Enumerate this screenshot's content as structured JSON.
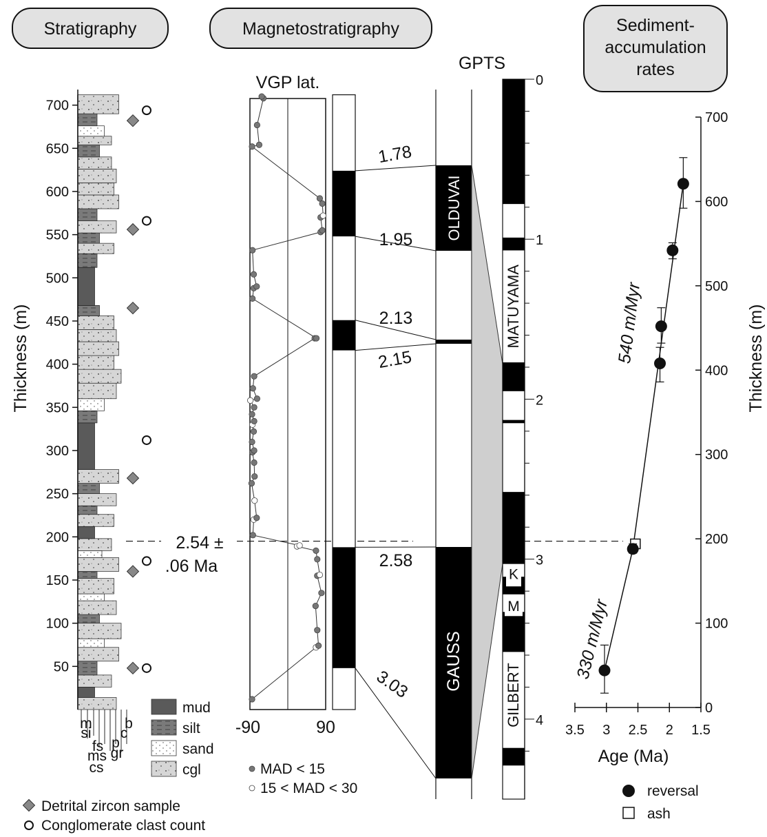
{
  "headers": {
    "stratigraphy": "Stratigraphy",
    "magnetostratigraphy": "Magnetostratigraphy",
    "sar_line1": "Sediment-",
    "sar_line2": "accumulation",
    "sar_line3": "rates"
  },
  "thickness_axis": {
    "label": "Thickness (m)",
    "ticks": [
      50,
      100,
      150,
      200,
      250,
      300,
      350,
      400,
      450,
      500,
      550,
      600,
      650,
      700
    ]
  },
  "lithology": {
    "legend": [
      {
        "key": "mud",
        "label": "mud",
        "color": "#555555"
      },
      {
        "key": "silt",
        "label": "silt",
        "color": "#777777"
      },
      {
        "key": "sand",
        "label": "sand",
        "color": "#ffffff"
      },
      {
        "key": "cgl",
        "label": "cgl",
        "color": "#d3d3d3"
      }
    ],
    "grain_labels": [
      "m",
      "si",
      "fs",
      "ms",
      "cs",
      "p",
      "gr",
      "c",
      "b"
    ],
    "units": [
      {
        "from": 0,
        "to": 14,
        "type": "cgl",
        "g": 0.8
      },
      {
        "from": 14,
        "to": 26,
        "type": "mud",
        "g": 0.35
      },
      {
        "from": 26,
        "to": 40,
        "type": "cgl",
        "g": 0.7
      },
      {
        "from": 40,
        "to": 56,
        "type": "silt",
        "g": 0.4
      },
      {
        "from": 56,
        "to": 72,
        "type": "cgl",
        "g": 0.85
      },
      {
        "from": 72,
        "to": 82,
        "type": "sand",
        "g": 0.55
      },
      {
        "from": 82,
        "to": 100,
        "type": "cgl",
        "g": 0.9
      },
      {
        "from": 100,
        "to": 110,
        "type": "silt",
        "g": 0.45
      },
      {
        "from": 110,
        "to": 126,
        "type": "cgl",
        "g": 0.8
      },
      {
        "from": 126,
        "to": 134,
        "type": "sand",
        "g": 0.55
      },
      {
        "from": 134,
        "to": 152,
        "type": "cgl",
        "g": 0.75
      },
      {
        "from": 152,
        "to": 160,
        "type": "silt",
        "g": 0.4
      },
      {
        "from": 160,
        "to": 176,
        "type": "cgl",
        "g": 0.85
      },
      {
        "from": 176,
        "to": 184,
        "type": "sand",
        "g": 0.5
      },
      {
        "from": 184,
        "to": 198,
        "type": "cgl",
        "g": 0.7
      },
      {
        "from": 198,
        "to": 212,
        "type": "mud",
        "g": 0.35
      },
      {
        "from": 212,
        "to": 226,
        "type": "cgl",
        "g": 0.75
      },
      {
        "from": 226,
        "to": 236,
        "type": "silt",
        "g": 0.4
      },
      {
        "from": 236,
        "to": 250,
        "type": "cgl",
        "g": 0.8
      },
      {
        "from": 250,
        "to": 262,
        "type": "silt",
        "g": 0.45
      },
      {
        "from": 262,
        "to": 278,
        "type": "cgl",
        "g": 0.85
      },
      {
        "from": 278,
        "to": 332,
        "type": "mud",
        "g": 0.35
      },
      {
        "from": 332,
        "to": 346,
        "type": "silt",
        "g": 0.4
      },
      {
        "from": 346,
        "to": 360,
        "type": "sand",
        "g": 0.55
      },
      {
        "from": 360,
        "to": 378,
        "type": "cgl",
        "g": 0.8
      },
      {
        "from": 378,
        "to": 394,
        "type": "cgl",
        "g": 0.9
      },
      {
        "from": 394,
        "to": 410,
        "type": "cgl",
        "g": 0.75
      },
      {
        "from": 410,
        "to": 426,
        "type": "cgl",
        "g": 0.85
      },
      {
        "from": 426,
        "to": 440,
        "type": "cgl",
        "g": 0.8
      },
      {
        "from": 440,
        "to": 456,
        "type": "cgl",
        "g": 0.75
      },
      {
        "from": 456,
        "to": 468,
        "type": "silt",
        "g": 0.45
      },
      {
        "from": 468,
        "to": 512,
        "type": "mud",
        "g": 0.35
      },
      {
        "from": 512,
        "to": 528,
        "type": "silt",
        "g": 0.4
      },
      {
        "from": 528,
        "to": 540,
        "type": "cgl",
        "g": 0.75
      },
      {
        "from": 540,
        "to": 552,
        "type": "silt",
        "g": 0.45
      },
      {
        "from": 552,
        "to": 566,
        "type": "cgl",
        "g": 0.8
      },
      {
        "from": 566,
        "to": 580,
        "type": "silt",
        "g": 0.4
      },
      {
        "from": 580,
        "to": 596,
        "type": "cgl",
        "g": 0.85
      },
      {
        "from": 596,
        "to": 610,
        "type": "cgl",
        "g": 0.75
      },
      {
        "from": 610,
        "to": 626,
        "type": "cgl",
        "g": 0.8
      },
      {
        "from": 626,
        "to": 640,
        "type": "cgl",
        "g": 0.7
      },
      {
        "from": 640,
        "to": 654,
        "type": "silt",
        "g": 0.45
      },
      {
        "from": 654,
        "to": 664,
        "type": "cgl",
        "g": 0.7
      },
      {
        "from": 664,
        "to": 676,
        "type": "sand",
        "g": 0.55
      },
      {
        "from": 676,
        "to": 690,
        "type": "silt",
        "g": 0.4
      },
      {
        "from": 690,
        "to": 712,
        "type": "cgl",
        "g": 0.85
      }
    ]
  },
  "samples": {
    "zircon": [
      48,
      160,
      268,
      465,
      556,
      682
    ],
    "clast": [
      48,
      172,
      312,
      566,
      694
    ],
    "legend_zircon": "Detrital zircon sample",
    "legend_clast": "Conglomerate clast count"
  },
  "ash_marker": {
    "thickness": 195,
    "label_line1": "2.54 ±",
    "label_line2": ".06 Ma"
  },
  "vgp": {
    "title": "VGP lat.",
    "xmin": -90,
    "xmax": 90,
    "tick_labels": [
      "-90",
      "90"
    ],
    "legend_low": "MAD < 15",
    "legend_mid": "15 < MAD < 30",
    "points": [
      {
        "h": 12,
        "lat": -85,
        "mad": "low"
      },
      {
        "h": 72,
        "lat": 67,
        "mad": "high"
      },
      {
        "h": 74,
        "lat": 73,
        "mad": "low"
      },
      {
        "h": 92,
        "lat": 70,
        "mad": "low"
      },
      {
        "h": 120,
        "lat": 66,
        "mad": "low"
      },
      {
        "h": 135,
        "lat": 80,
        "mad": "low"
      },
      {
        "h": 155,
        "lat": 70,
        "mad": "low"
      },
      {
        "h": 156,
        "lat": 76,
        "mad": "high"
      },
      {
        "h": 174,
        "lat": 70,
        "mad": "low"
      },
      {
        "h": 184,
        "lat": 67,
        "mad": "low"
      },
      {
        "h": 189,
        "lat": 22,
        "mad": "high"
      },
      {
        "h": 190,
        "lat": 28,
        "mad": "high"
      },
      {
        "h": 202,
        "lat": -83,
        "mad": "low"
      },
      {
        "h": 220,
        "lat": -81,
        "mad": "high"
      },
      {
        "h": 222,
        "lat": -74,
        "mad": "low"
      },
      {
        "h": 242,
        "lat": -79,
        "mad": "high"
      },
      {
        "h": 262,
        "lat": -86,
        "mad": "low"
      },
      {
        "h": 270,
        "lat": -79,
        "mad": "low"
      },
      {
        "h": 286,
        "lat": -80,
        "mad": "low"
      },
      {
        "h": 298,
        "lat": -84,
        "mad": "low"
      },
      {
        "h": 300,
        "lat": -80,
        "mad": "low"
      },
      {
        "h": 310,
        "lat": -85,
        "mad": "low"
      },
      {
        "h": 322,
        "lat": -81,
        "mad": "low"
      },
      {
        "h": 330,
        "lat": -84,
        "mad": "high"
      },
      {
        "h": 334,
        "lat": -80,
        "mad": "low"
      },
      {
        "h": 342,
        "lat": -85,
        "mad": "low"
      },
      {
        "h": 350,
        "lat": -80,
        "mad": "low"
      },
      {
        "h": 358,
        "lat": -89,
        "mad": "high"
      },
      {
        "h": 360,
        "lat": -73,
        "mad": "low"
      },
      {
        "h": 372,
        "lat": -83,
        "mad": "low"
      },
      {
        "h": 386,
        "lat": -80,
        "mad": "low"
      },
      {
        "h": 430,
        "lat": 64,
        "mad": "low"
      },
      {
        "h": 430,
        "lat": 68,
        "mad": "low"
      },
      {
        "h": 476,
        "lat": -84,
        "mad": "low"
      },
      {
        "h": 488,
        "lat": -81,
        "mad": "low"
      },
      {
        "h": 490,
        "lat": -74,
        "mad": "low"
      },
      {
        "h": 504,
        "lat": -81,
        "mad": "low"
      },
      {
        "h": 532,
        "lat": -84,
        "mad": "low"
      },
      {
        "h": 553,
        "lat": 78,
        "mad": "low"
      },
      {
        "h": 555,
        "lat": 82,
        "mad": "low"
      },
      {
        "h": 570,
        "lat": 78,
        "mad": "low"
      },
      {
        "h": 572,
        "lat": 84,
        "mad": "high"
      },
      {
        "h": 586,
        "lat": 82,
        "mad": "low"
      },
      {
        "h": 592,
        "lat": 76,
        "mad": "low"
      },
      {
        "h": 652,
        "lat": -85,
        "mad": "low"
      },
      {
        "h": 654,
        "lat": -68,
        "mad": "low"
      },
      {
        "h": 677,
        "lat": -73,
        "mad": "low"
      },
      {
        "h": 708,
        "lat": -58,
        "mad": "low"
      },
      {
        "h": 710,
        "lat": -62,
        "mad": "low"
      }
    ]
  },
  "local_polarity": {
    "top": 712,
    "bottom": 0,
    "normal_zones": [
      [
        48,
        188
      ],
      [
        416,
        451
      ],
      [
        548,
        624
      ]
    ]
  },
  "correlation": {
    "ties": [
      {
        "age": "1.78",
        "h": 624,
        "gpts_age": 1.78
      },
      {
        "age": "1.95",
        "h": 548,
        "gpts_age": 1.95
      },
      {
        "age": "2.13",
        "h": 451,
        "gpts_age": 2.13
      },
      {
        "age": "2.15",
        "h": 416,
        "gpts_age": 2.15
      },
      {
        "age": "2.58",
        "h": 188,
        "gpts_age": 2.58
      },
      {
        "age": "3.03",
        "h": 48,
        "gpts_age": 3.03
      }
    ],
    "chron_labels": {
      "olduvai": "OLDUVAI",
      "gauss": "GAUSS"
    }
  },
  "gpts": {
    "title": "GPTS",
    "age_ticks": [
      "0",
      "1",
      "2",
      "3",
      "4"
    ],
    "age_min": 0,
    "age_max": 4.5,
    "normal_intervals": [
      [
        0,
        0.78
      ],
      [
        0.99,
        1.07
      ],
      [
        1.77,
        1.95
      ],
      [
        2.13,
        2.15
      ],
      [
        2.58,
        3.03
      ],
      [
        3.11,
        3.22
      ],
      [
        3.33,
        3.58
      ],
      [
        4.18,
        4.29
      ]
    ],
    "labels": {
      "matuyama": "MATUYAMA",
      "gilbert": "GILBERT",
      "kaena": "K",
      "mammoth": "M"
    }
  },
  "sar_plot": {
    "xlabel": "Age (Ma)",
    "ylabel": "Thickness (m)",
    "x_ticks": [
      "3.5",
      "3",
      "2.5",
      "2",
      "1.5"
    ],
    "y_ticks": [
      "0",
      "100",
      "200",
      "300",
      "400",
      "500",
      "600",
      "700"
    ],
    "xlim": [
      3.5,
      1.5
    ],
    "ylim": [
      0,
      700
    ],
    "reversals": [
      {
        "age": 3.03,
        "h": 44,
        "err_lo": 17,
        "err_hi": 74
      },
      {
        "age": 2.58,
        "h": 188,
        "err_lo": 183,
        "err_hi": 194
      },
      {
        "age": 2.15,
        "h": 408,
        "err_lo": 386,
        "err_hi": 427
      },
      {
        "age": 2.13,
        "h": 452,
        "err_lo": 432,
        "err_hi": 474
      },
      {
        "age": 1.95,
        "h": 542,
        "err_lo": 532,
        "err_hi": 551
      },
      {
        "age": 1.78,
        "h": 621,
        "err_lo": 592,
        "err_hi": 652
      }
    ],
    "ash": {
      "age": 2.54,
      "h": 194
    },
    "lines": [
      {
        "from": [
          3.03,
          44
        ],
        "to": [
          2.58,
          188
        ]
      },
      {
        "from": [
          2.58,
          188
        ],
        "to": [
          1.78,
          621
        ]
      }
    ],
    "rate_labels": [
      "330 m/Myr",
      "540 m/Myr"
    ],
    "legend_reversal": "reversal",
    "legend_ash": "ash"
  }
}
